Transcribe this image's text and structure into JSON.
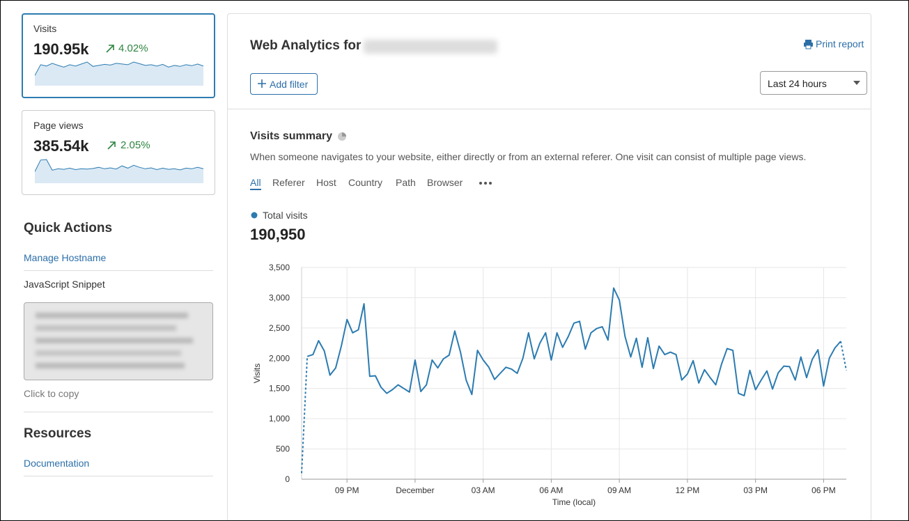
{
  "sidebar": {
    "stats": [
      {
        "label": "Visits",
        "value": "190.95k",
        "change": "4.02%",
        "sparkline": [
          30,
          62,
          58,
          66,
          60,
          55,
          62,
          58,
          64,
          70,
          57,
          60,
          63,
          61,
          66,
          64,
          62,
          70,
          65,
          60,
          62,
          58,
          63,
          55,
          60,
          57,
          62,
          59,
          64,
          58
        ]
      },
      {
        "label": "Page views",
        "value": "385.54k",
        "change": "2.05%",
        "sparkline": [
          40,
          80,
          82,
          45,
          50,
          48,
          52,
          47,
          50,
          49,
          51,
          55,
          50,
          53,
          49,
          60,
          52,
          62,
          55,
          50,
          53,
          47,
          52,
          48,
          50,
          46,
          52,
          50,
          55,
          50
        ]
      }
    ],
    "quick_actions": {
      "title": "Quick Actions",
      "links": [
        "Manage Hostname"
      ],
      "snippet_label": "JavaScript Snippet",
      "copy_hint": "Click to copy"
    },
    "resources": {
      "title": "Resources",
      "links": [
        "Documentation"
      ]
    }
  },
  "header": {
    "title": "Web Analytics for",
    "print": "Print report",
    "add_filter": "Add filter",
    "time_range": "Last 24 hours"
  },
  "summary": {
    "title": "Visits summary",
    "description": "When someone navigates to your website, either directly or from an external referer. One visit can consist of multiple page views.",
    "tabs": [
      "All",
      "Referer",
      "Host",
      "Country",
      "Path",
      "Browser"
    ],
    "total": "190,950"
  },
  "chart_data": {
    "type": "line",
    "x_label": "Time (local)",
    "y_label": "Visits",
    "x": [
      0,
      0.25,
      0.5,
      0.75,
      1,
      1.25,
      1.5,
      1.75,
      2,
      2.25,
      2.5,
      2.75,
      3,
      3.25,
      3.5,
      3.75,
      4,
      4.25,
      4.5,
      4.75,
      5,
      5.25,
      5.5,
      5.75,
      6,
      6.25,
      6.5,
      6.75,
      7,
      7.25,
      7.5,
      7.75,
      8,
      8.25,
      8.5,
      8.75,
      9,
      9.25,
      9.5,
      9.75,
      10,
      10.25,
      10.5,
      10.75,
      11,
      11.25,
      11.5,
      11.75,
      12,
      12.25,
      12.5,
      12.75,
      13,
      13.25,
      13.5,
      13.75,
      14,
      14.25,
      14.5,
      14.75,
      15,
      15.25,
      15.5,
      15.75,
      16,
      16.25,
      16.5,
      16.75,
      17,
      17.25,
      17.5,
      17.75,
      18,
      18.25,
      18.5,
      18.75,
      19,
      19.25,
      19.5,
      19.75,
      20,
      20.25,
      20.5,
      20.75,
      21,
      21.25,
      21.5,
      21.75,
      22,
      22.25,
      22.5,
      22.75,
      23,
      23.25,
      23.5,
      23.75,
      24
    ],
    "series": [
      {
        "name": "Total visits",
        "color": "#2b7bb0",
        "values": [
          100,
          2030,
          2060,
          2290,
          2120,
          1720,
          1840,
          2200,
          2640,
          2420,
          2470,
          2900,
          1700,
          1710,
          1520,
          1420,
          1480,
          1560,
          1500,
          1440,
          1970,
          1450,
          1560,
          1970,
          1840,
          1990,
          2050,
          2450,
          2100,
          1640,
          1400,
          2130,
          1970,
          1850,
          1650,
          1750,
          1850,
          1820,
          1750,
          2000,
          2420,
          1990,
          2250,
          2420,
          1970,
          2420,
          2180,
          2360,
          2580,
          2610,
          2150,
          2420,
          2490,
          2520,
          2300,
          3160,
          2960,
          2360,
          2020,
          2330,
          1850,
          2340,
          1830,
          2200,
          2060,
          2100,
          2060,
          1640,
          1740,
          1960,
          1590,
          1810,
          1680,
          1560,
          1900,
          2160,
          2130,
          1420,
          1380,
          1800,
          1480,
          1640,
          1790,
          1490,
          1760,
          1870,
          1860,
          1640,
          2020,
          1680,
          1980,
          2140,
          1540,
          2000,
          2170,
          2280,
          1800
        ]
      }
    ],
    "xlim": [
      0,
      24
    ],
    "xticks": [
      {
        "value": 2,
        "label": "09 PM"
      },
      {
        "value": 5,
        "label": "December"
      },
      {
        "value": 8,
        "label": "03 AM"
      },
      {
        "value": 11,
        "label": "06 AM"
      },
      {
        "value": 14,
        "label": "09 AM"
      },
      {
        "value": 17,
        "label": "12 PM"
      },
      {
        "value": 20,
        "label": "03 PM"
      },
      {
        "value": 23,
        "label": "06 PM"
      }
    ],
    "ylim": [
      0,
      3500
    ],
    "yticks": [
      0,
      500,
      {
        "value": 1000,
        "label": "1,000"
      },
      {
        "value": 1500,
        "label": "1,500"
      },
      {
        "value": 2000,
        "label": "2,000"
      },
      {
        "value": 2500,
        "label": "2,500"
      },
      {
        "value": 3000,
        "label": "3,000"
      },
      {
        "value": 3500,
        "label": "3,500"
      }
    ],
    "grid": true
  }
}
